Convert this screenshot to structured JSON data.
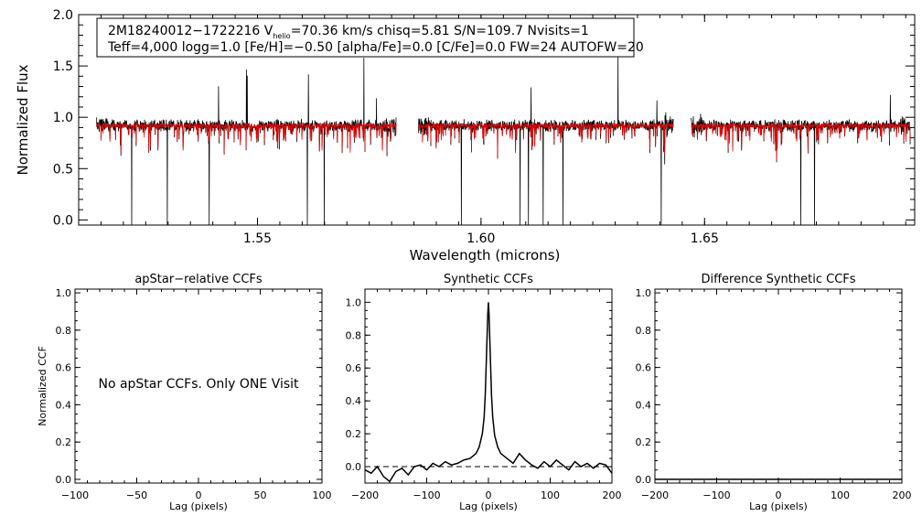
{
  "spectrum": {
    "type": "line",
    "ylabel": "Normalized Flux",
    "xlabel": "Wavelength (microns)",
    "xlim": [
      1.51,
      1.697
    ],
    "ylim": [
      -0.05,
      2.0
    ],
    "xticks": [
      {
        "value": 1.55,
        "label": "1.55"
      },
      {
        "value": 1.6,
        "label": "1.60"
      },
      {
        "value": 1.65,
        "label": "1.65"
      }
    ],
    "yticks": [
      {
        "value": 0.0,
        "label": "0.0"
      },
      {
        "value": 0.5,
        "label": "0.5"
      },
      {
        "value": 1.0,
        "label": "1.0"
      },
      {
        "value": 1.5,
        "label": "1.5"
      },
      {
        "value": 2.0,
        "label": "2.0"
      }
    ],
    "chips": [
      [
        1.514,
        1.581
      ],
      [
        1.586,
        1.643
      ],
      [
        1.647,
        1.696
      ]
    ],
    "series": [
      {
        "name": "observed",
        "color": "#000000"
      },
      {
        "name": "model",
        "color": "#e00000"
      }
    ],
    "annotation": {
      "id_prefix": "2M18240012−1722216  V",
      "helio_sub": "helio",
      "line1_rest": "=70.36 km/s  chisq=5.81  S/N=109.7  Nvisits=1",
      "line2": "Teff=4,000 logg=1.0 [Fe/H]=−0.50 [alpha/Fe]=0.0 [C/Fe]=0.0 FW=24 AUTOFW=20"
    }
  },
  "chart_data": [
    {
      "type": "line",
      "title": "apStar−relative CCFs",
      "xlabel": "Lag (pixels)",
      "ylabel": "Normalized CCF",
      "xlim": [
        -100,
        100
      ],
      "ylim": [
        -0.02,
        1.02
      ],
      "xticks": [
        {
          "value": -100,
          "label": "−100"
        },
        {
          "value": -50,
          "label": "−50"
        },
        {
          "value": 0,
          "label": "0"
        },
        {
          "value": 50,
          "label": "50"
        },
        {
          "value": 100,
          "label": "100"
        }
      ],
      "yticks": [
        {
          "value": 0.0,
          "label": "0.0"
        },
        {
          "value": 0.2,
          "label": "0.2"
        },
        {
          "value": 0.4,
          "label": "0.4"
        },
        {
          "value": 0.6,
          "label": "0.6"
        },
        {
          "value": 0.8,
          "label": "0.8"
        },
        {
          "value": 1.0,
          "label": "1.0"
        }
      ],
      "note": "No apStar CCFs.  Only ONE Visit",
      "series": []
    },
    {
      "type": "line",
      "title": "Synthetic CCFs",
      "xlabel": "Lag (pixels)",
      "ylabel": "",
      "xlim": [
        -200,
        200
      ],
      "ylim": [
        -0.1,
        1.08
      ],
      "xticks": [
        {
          "value": -200,
          "label": "−200"
        },
        {
          "value": -100,
          "label": "−100"
        },
        {
          "value": 0,
          "label": "0"
        },
        {
          "value": 100,
          "label": "100"
        },
        {
          "value": 200,
          "label": "200"
        }
      ],
      "yticks": [
        {
          "value": 0.0,
          "label": "0.0"
        },
        {
          "value": 0.2,
          "label": "0.2"
        },
        {
          "value": 0.4,
          "label": "0.4"
        },
        {
          "value": 0.6,
          "label": "0.6"
        },
        {
          "value": 0.8,
          "label": "0.8"
        },
        {
          "value": 1.0,
          "label": "1.0"
        }
      ],
      "zero_line": 0.0,
      "series": [
        {
          "name": "CCF",
          "x": [
            -200,
            -190,
            -180,
            -170,
            -160,
            -150,
            -140,
            -130,
            -120,
            -110,
            -100,
            -90,
            -80,
            -70,
            -60,
            -50,
            -40,
            -30,
            -20,
            -15,
            -10,
            -7,
            -5,
            -3,
            -1,
            0,
            1,
            3,
            5,
            7,
            10,
            15,
            20,
            30,
            40,
            50,
            60,
            70,
            80,
            90,
            100,
            110,
            120,
            130,
            140,
            150,
            160,
            170,
            180,
            190,
            200
          ],
          "y": [
            -0.02,
            -0.04,
            0.0,
            -0.06,
            -0.09,
            -0.03,
            -0.01,
            -0.05,
            0.0,
            0.01,
            -0.02,
            0.02,
            0.0,
            0.03,
            0.01,
            0.02,
            0.04,
            0.05,
            0.08,
            0.12,
            0.2,
            0.3,
            0.45,
            0.7,
            0.93,
            1.0,
            0.92,
            0.68,
            0.43,
            0.3,
            0.19,
            0.12,
            0.08,
            0.05,
            0.02,
            0.08,
            0.04,
            0.01,
            -0.01,
            0.03,
            0.0,
            0.04,
            0.01,
            -0.02,
            0.03,
            0.0,
            0.02,
            -0.01,
            0.02,
            0.01,
            -0.04
          ]
        }
      ]
    },
    {
      "type": "line",
      "title": "Difference Synthetic CCFs",
      "xlabel": "Lag (pixels)",
      "ylabel": "",
      "xlim": [
        -200,
        200
      ],
      "ylim": [
        -0.02,
        1.02
      ],
      "xticks": [
        {
          "value": -200,
          "label": "−200"
        },
        {
          "value": -100,
          "label": "−100"
        },
        {
          "value": 0,
          "label": "0"
        },
        {
          "value": 100,
          "label": "100"
        },
        {
          "value": 200,
          "label": "200"
        }
      ],
      "yticks": [
        {
          "value": 0.0,
          "label": "0.0"
        },
        {
          "value": 0.2,
          "label": "0.2"
        },
        {
          "value": 0.4,
          "label": "0.4"
        },
        {
          "value": 0.6,
          "label": "0.6"
        },
        {
          "value": 0.8,
          "label": "0.8"
        },
        {
          "value": 1.0,
          "label": "1.0"
        }
      ],
      "series": [
        {
          "name": "difference",
          "x": [
            -200,
            200
          ],
          "y": [
            0.0,
            0.0
          ]
        }
      ]
    }
  ]
}
